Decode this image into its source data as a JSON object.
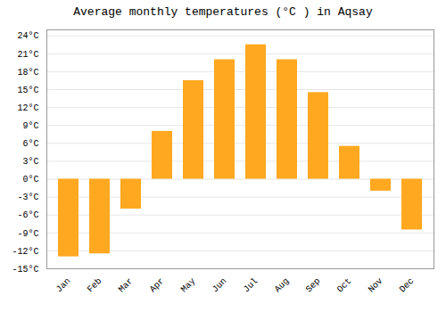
{
  "chart_data": {
    "type": "bar",
    "title": "Average monthly temperatures (°C ) in Aqsay",
    "categories": [
      "Jan",
      "Feb",
      "Mar",
      "Apr",
      "May",
      "Jun",
      "Jul",
      "Aug",
      "Sep",
      "Oct",
      "Nov",
      "Dec"
    ],
    "values": [
      -13,
      -12.5,
      -5,
      8,
      16.5,
      20,
      22.5,
      20,
      14.5,
      5.5,
      -2,
      -8.5
    ],
    "color": "#FFA820",
    "ylim": [
      -15,
      25
    ],
    "yticks": [
      {
        "value": -15,
        "label": "-15°C"
      },
      {
        "value": -12,
        "label": "-12°C"
      },
      {
        "value": -9,
        "label": "-9°C"
      },
      {
        "value": -6,
        "label": "-6°C"
      },
      {
        "value": -3,
        "label": "-3°C"
      },
      {
        "value": 0,
        "label": "0°C"
      },
      {
        "value": 3,
        "label": "3°C"
      },
      {
        "value": 6,
        "label": "6°C"
      },
      {
        "value": 9,
        "label": "9°C"
      },
      {
        "value": 12,
        "label": "12°C"
      },
      {
        "value": 15,
        "label": "15°C"
      },
      {
        "value": 18,
        "label": "18°C"
      },
      {
        "value": 21,
        "label": "21°C"
      },
      {
        "value": 24,
        "label": "24°C"
      }
    ],
    "grid": true
  }
}
